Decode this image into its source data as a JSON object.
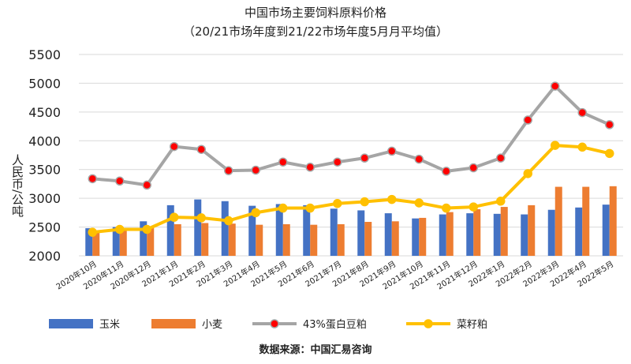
{
  "chart_data": {
    "type": "bar+line",
    "title": "中国市场主要饲料原料价格",
    "subtitle": "（20/21市场年度到21/22市场年度5月月平均值）",
    "ylabel": "人民币/公吨",
    "source": "数据来源：中国汇易咨询",
    "ylim": [
      2000,
      5500
    ],
    "yticks": [
      2000,
      2500,
      3000,
      3500,
      4000,
      4500,
      5000,
      5500
    ],
    "grid": true,
    "legend_position": "bottom",
    "categories": [
      "2020年10月",
      "2020年11月",
      "2020年12月",
      "2021年1月",
      "2021年2月",
      "2021年3月",
      "2021年4月",
      "2021年5月",
      "2021年6月",
      "2021年7月",
      "2021年8月",
      "2021年9月",
      "2021年10月",
      "2021年11月",
      "2021年12月",
      "2022年1月",
      "2022年2月",
      "2022年3月",
      "2022年4月",
      "2022年5月"
    ],
    "series": [
      {
        "name": "玉米",
        "type": "bar",
        "color": "#4472C4",
        "values": [
          2480,
          2500,
          2600,
          2880,
          2980,
          2950,
          2870,
          2900,
          2880,
          2820,
          2790,
          2740,
          2650,
          2720,
          2740,
          2730,
          2720,
          2800,
          2840,
          2890
        ]
      },
      {
        "name": "小麦",
        "type": "bar",
        "color": "#ED7D31",
        "values": [
          2440,
          2460,
          2490,
          2550,
          2570,
          2560,
          2540,
          2550,
          2540,
          2550,
          2590,
          2600,
          2660,
          2760,
          2810,
          2850,
          2880,
          3200,
          3200,
          3210
        ]
      },
      {
        "name": "43%蛋白豆粕",
        "type": "line",
        "color": "#A5A5A5",
        "marker_color": "#FF0000",
        "values": [
          3340,
          3300,
          3230,
          3900,
          3850,
          3480,
          3490,
          3630,
          3540,
          3630,
          3700,
          3820,
          3680,
          3470,
          3530,
          3700,
          4360,
          4950,
          4490,
          4280
        ]
      },
      {
        "name": "菜籽粕",
        "type": "line",
        "color": "#FFC000",
        "marker_color": "#FFC000",
        "values": [
          2410,
          2460,
          2460,
          2670,
          2660,
          2610,
          2750,
          2830,
          2830,
          2910,
          2940,
          2980,
          2920,
          2830,
          2850,
          2950,
          3430,
          3920,
          3890,
          3780
        ]
      }
    ]
  }
}
